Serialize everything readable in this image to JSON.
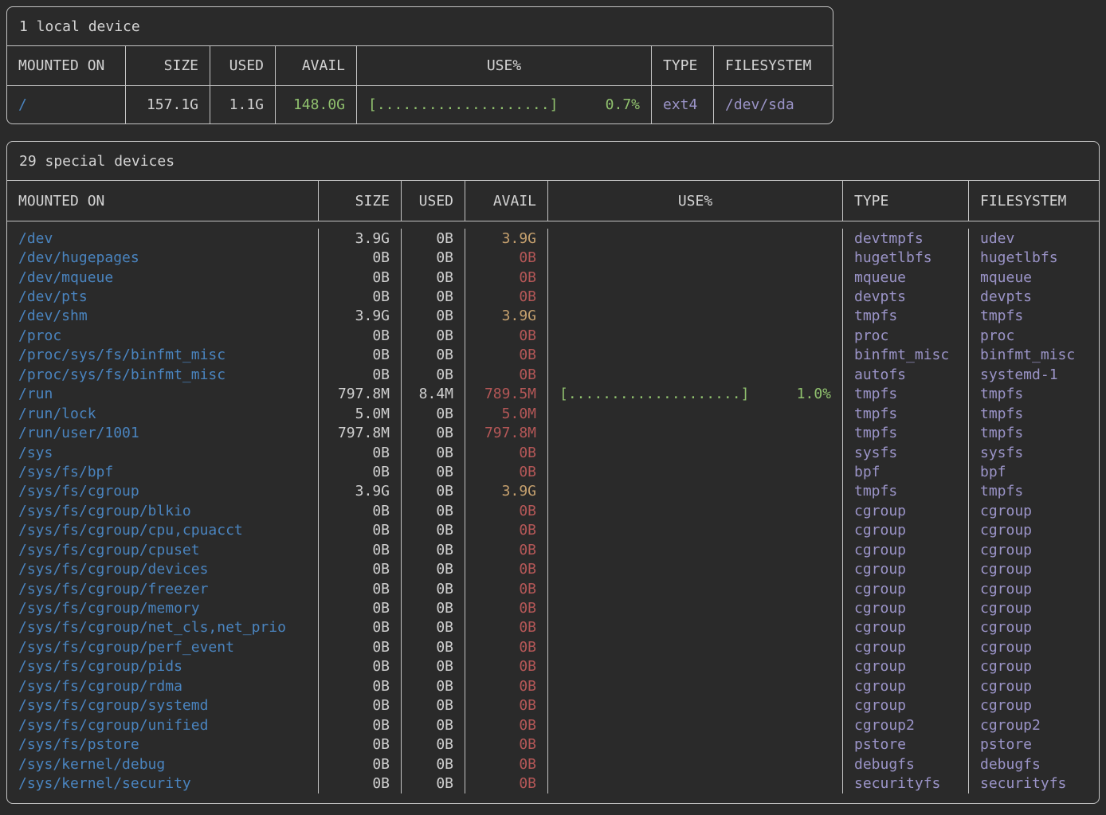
{
  "colors": {
    "background": "#2a2a2a",
    "border": "#c4c4c4",
    "heading_text": "#d4d4d4",
    "value_text": "#d0d0d0",
    "mount_point_blue": "#4a84bf",
    "avail_green": "#90c16e",
    "avail_yellow": "#c5a06e",
    "avail_red": "#b45757",
    "usage_bar_green": "#90c16e",
    "type_purple": "#9b94c8"
  },
  "local_table": {
    "title": "1 local device",
    "columns": [
      "MOUNTED ON",
      "SIZE",
      "USED",
      "AVAIL",
      "USE%",
      "TYPE",
      "FILESYSTEM"
    ],
    "rows": [
      {
        "mounted_on": "/",
        "size": "157.1G",
        "used": "1.1G",
        "avail": "148.0G",
        "avail_level": "high",
        "use_bar": "[....................]",
        "use_pct": "0.7%",
        "type": "ext4",
        "filesystem": "/dev/sda"
      }
    ]
  },
  "special_table": {
    "title": "29 special devices",
    "columns": [
      "MOUNTED ON",
      "SIZE",
      "USED",
      "AVAIL",
      "USE%",
      "TYPE",
      "FILESYSTEM"
    ],
    "rows": [
      {
        "mounted_on": "/dev",
        "size": "3.9G",
        "used": "0B",
        "avail": "3.9G",
        "avail_level": "mid",
        "use_bar": "",
        "use_pct": "",
        "type": "devtmpfs",
        "filesystem": "udev"
      },
      {
        "mounted_on": "/dev/hugepages",
        "size": "0B",
        "used": "0B",
        "avail": "0B",
        "avail_level": "low",
        "use_bar": "",
        "use_pct": "",
        "type": "hugetlbfs",
        "filesystem": "hugetlbfs"
      },
      {
        "mounted_on": "/dev/mqueue",
        "size": "0B",
        "used": "0B",
        "avail": "0B",
        "avail_level": "low",
        "use_bar": "",
        "use_pct": "",
        "type": "mqueue",
        "filesystem": "mqueue"
      },
      {
        "mounted_on": "/dev/pts",
        "size": "0B",
        "used": "0B",
        "avail": "0B",
        "avail_level": "low",
        "use_bar": "",
        "use_pct": "",
        "type": "devpts",
        "filesystem": "devpts"
      },
      {
        "mounted_on": "/dev/shm",
        "size": "3.9G",
        "used": "0B",
        "avail": "3.9G",
        "avail_level": "mid",
        "use_bar": "",
        "use_pct": "",
        "type": "tmpfs",
        "filesystem": "tmpfs"
      },
      {
        "mounted_on": "/proc",
        "size": "0B",
        "used": "0B",
        "avail": "0B",
        "avail_level": "low",
        "use_bar": "",
        "use_pct": "",
        "type": "proc",
        "filesystem": "proc"
      },
      {
        "mounted_on": "/proc/sys/fs/binfmt_misc",
        "size": "0B",
        "used": "0B",
        "avail": "0B",
        "avail_level": "low",
        "use_bar": "",
        "use_pct": "",
        "type": "binfmt_misc",
        "filesystem": "binfmt_misc"
      },
      {
        "mounted_on": "/proc/sys/fs/binfmt_misc",
        "size": "0B",
        "used": "0B",
        "avail": "0B",
        "avail_level": "low",
        "use_bar": "",
        "use_pct": "",
        "type": "autofs",
        "filesystem": "systemd-1"
      },
      {
        "mounted_on": "/run",
        "size": "797.8M",
        "used": "8.4M",
        "avail": "789.5M",
        "avail_level": "low",
        "use_bar": "[....................]",
        "use_pct": "1.0%",
        "type": "tmpfs",
        "filesystem": "tmpfs"
      },
      {
        "mounted_on": "/run/lock",
        "size": "5.0M",
        "used": "0B",
        "avail": "5.0M",
        "avail_level": "low",
        "use_bar": "",
        "use_pct": "",
        "type": "tmpfs",
        "filesystem": "tmpfs"
      },
      {
        "mounted_on": "/run/user/1001",
        "size": "797.8M",
        "used": "0B",
        "avail": "797.8M",
        "avail_level": "low",
        "use_bar": "",
        "use_pct": "",
        "type": "tmpfs",
        "filesystem": "tmpfs"
      },
      {
        "mounted_on": "/sys",
        "size": "0B",
        "used": "0B",
        "avail": "0B",
        "avail_level": "low",
        "use_bar": "",
        "use_pct": "",
        "type": "sysfs",
        "filesystem": "sysfs"
      },
      {
        "mounted_on": "/sys/fs/bpf",
        "size": "0B",
        "used": "0B",
        "avail": "0B",
        "avail_level": "low",
        "use_bar": "",
        "use_pct": "",
        "type": "bpf",
        "filesystem": "bpf"
      },
      {
        "mounted_on": "/sys/fs/cgroup",
        "size": "3.9G",
        "used": "0B",
        "avail": "3.9G",
        "avail_level": "mid",
        "use_bar": "",
        "use_pct": "",
        "type": "tmpfs",
        "filesystem": "tmpfs"
      },
      {
        "mounted_on": "/sys/fs/cgroup/blkio",
        "size": "0B",
        "used": "0B",
        "avail": "0B",
        "avail_level": "low",
        "use_bar": "",
        "use_pct": "",
        "type": "cgroup",
        "filesystem": "cgroup"
      },
      {
        "mounted_on": "/sys/fs/cgroup/cpu,cpuacct",
        "size": "0B",
        "used": "0B",
        "avail": "0B",
        "avail_level": "low",
        "use_bar": "",
        "use_pct": "",
        "type": "cgroup",
        "filesystem": "cgroup"
      },
      {
        "mounted_on": "/sys/fs/cgroup/cpuset",
        "size": "0B",
        "used": "0B",
        "avail": "0B",
        "avail_level": "low",
        "use_bar": "",
        "use_pct": "",
        "type": "cgroup",
        "filesystem": "cgroup"
      },
      {
        "mounted_on": "/sys/fs/cgroup/devices",
        "size": "0B",
        "used": "0B",
        "avail": "0B",
        "avail_level": "low",
        "use_bar": "",
        "use_pct": "",
        "type": "cgroup",
        "filesystem": "cgroup"
      },
      {
        "mounted_on": "/sys/fs/cgroup/freezer",
        "size": "0B",
        "used": "0B",
        "avail": "0B",
        "avail_level": "low",
        "use_bar": "",
        "use_pct": "",
        "type": "cgroup",
        "filesystem": "cgroup"
      },
      {
        "mounted_on": "/sys/fs/cgroup/memory",
        "size": "0B",
        "used": "0B",
        "avail": "0B",
        "avail_level": "low",
        "use_bar": "",
        "use_pct": "",
        "type": "cgroup",
        "filesystem": "cgroup"
      },
      {
        "mounted_on": "/sys/fs/cgroup/net_cls,net_prio",
        "size": "0B",
        "used": "0B",
        "avail": "0B",
        "avail_level": "low",
        "use_bar": "",
        "use_pct": "",
        "type": "cgroup",
        "filesystem": "cgroup"
      },
      {
        "mounted_on": "/sys/fs/cgroup/perf_event",
        "size": "0B",
        "used": "0B",
        "avail": "0B",
        "avail_level": "low",
        "use_bar": "",
        "use_pct": "",
        "type": "cgroup",
        "filesystem": "cgroup"
      },
      {
        "mounted_on": "/sys/fs/cgroup/pids",
        "size": "0B",
        "used": "0B",
        "avail": "0B",
        "avail_level": "low",
        "use_bar": "",
        "use_pct": "",
        "type": "cgroup",
        "filesystem": "cgroup"
      },
      {
        "mounted_on": "/sys/fs/cgroup/rdma",
        "size": "0B",
        "used": "0B",
        "avail": "0B",
        "avail_level": "low",
        "use_bar": "",
        "use_pct": "",
        "type": "cgroup",
        "filesystem": "cgroup"
      },
      {
        "mounted_on": "/sys/fs/cgroup/systemd",
        "size": "0B",
        "used": "0B",
        "avail": "0B",
        "avail_level": "low",
        "use_bar": "",
        "use_pct": "",
        "type": "cgroup",
        "filesystem": "cgroup"
      },
      {
        "mounted_on": "/sys/fs/cgroup/unified",
        "size": "0B",
        "used": "0B",
        "avail": "0B",
        "avail_level": "low",
        "use_bar": "",
        "use_pct": "",
        "type": "cgroup2",
        "filesystem": "cgroup2"
      },
      {
        "mounted_on": "/sys/fs/pstore",
        "size": "0B",
        "used": "0B",
        "avail": "0B",
        "avail_level": "low",
        "use_bar": "",
        "use_pct": "",
        "type": "pstore",
        "filesystem": "pstore"
      },
      {
        "mounted_on": "/sys/kernel/debug",
        "size": "0B",
        "used": "0B",
        "avail": "0B",
        "avail_level": "low",
        "use_bar": "",
        "use_pct": "",
        "type": "debugfs",
        "filesystem": "debugfs"
      },
      {
        "mounted_on": "/sys/kernel/security",
        "size": "0B",
        "used": "0B",
        "avail": "0B",
        "avail_level": "low",
        "use_bar": "",
        "use_pct": "",
        "type": "securityfs",
        "filesystem": "securityfs"
      }
    ]
  }
}
